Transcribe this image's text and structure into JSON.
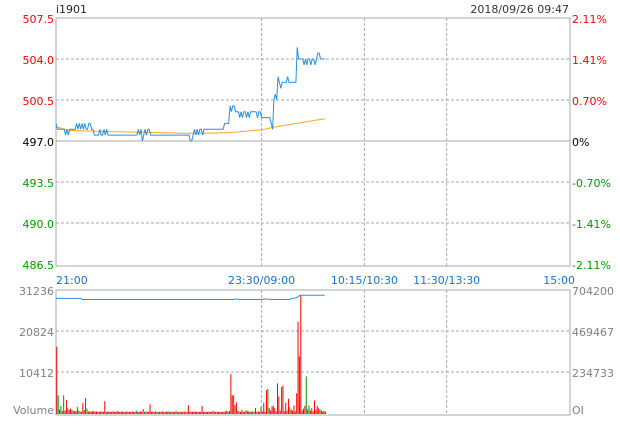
{
  "header": {
    "symbol": "i1901",
    "datetime": "2018/09/26 09:47"
  },
  "colors": {
    "up": "#ff0000",
    "down": "#009900",
    "neutral": "#000000",
    "price_line": "#2a8ee0",
    "avg_line": "#f5a623",
    "oi_line": "#2a8ee0",
    "time_labels": "#1a73c8",
    "volume_labels": "#808080",
    "grid": "#aaaaaa"
  },
  "chart_data": [
    {
      "type": "line",
      "name_panel": "price",
      "ylim": [
        486.5,
        507.5
      ],
      "prev_close": 497.0,
      "y_ticks_left": [
        "507.5",
        "504.0",
        "500.5",
        "497.0",
        "493.5",
        "490.0",
        "486.5"
      ],
      "y_ticks_right": [
        "2.11%",
        "1.41%",
        "0.70%",
        "0%",
        "-0.70%",
        "-1.41%",
        "-2.11%"
      ],
      "x_ticks": [
        "21:00",
        "23:30/09:00",
        "10:15/10:30",
        "11:30/13:30",
        "15:00"
      ],
      "session_minutes": 375,
      "grid": true,
      "price": [
        498.5,
        498.0,
        498.0,
        498.0,
        498.0,
        498.0,
        498.0,
        497.5,
        498.0,
        497.5,
        498.0,
        498.0,
        498.0,
        498.0,
        498.0,
        498.5,
        498.0,
        498.5,
        498.0,
        498.5,
        498.0,
        498.5,
        498.0,
        498.0,
        498.5,
        498.5,
        498.0,
        498.0,
        497.5,
        497.5,
        497.5,
        497.5,
        498.0,
        497.5,
        497.5,
        498.0,
        497.5,
        498.0,
        497.5,
        497.5,
        497.5,
        497.5,
        497.5,
        497.5,
        497.5,
        497.5,
        497.5,
        497.5,
        497.5,
        497.5,
        497.5,
        497.5,
        497.5,
        497.5,
        497.5,
        497.5,
        497.5,
        497.5,
        497.5,
        497.5,
        498.0,
        497.5,
        498.0,
        497.0,
        497.5,
        498.0,
        497.5,
        498.0,
        498.0,
        497.5,
        497.5,
        497.5,
        497.5,
        497.5,
        497.5,
        497.5,
        497.5,
        497.5,
        497.5,
        497.5,
        497.5,
        497.5,
        497.5,
        497.5,
        497.5,
        497.5,
        497.5,
        497.5,
        497.5,
        497.5,
        497.5,
        497.5,
        497.5,
        497.5,
        497.5,
        497.5,
        497.5,
        497.5,
        497.0,
        497.0,
        497.5,
        498.0,
        497.5,
        498.0,
        497.5,
        498.0,
        498.0,
        497.5,
        498.0,
        498.0,
        498.0,
        498.0,
        498.0,
        498.0,
        498.0,
        498.0,
        498.0,
        498.0,
        498.0,
        498.0,
        498.0,
        498.0,
        498.0,
        498.5,
        498.5,
        498.5,
        498.5,
        500.0,
        499.5,
        500.0,
        500.0,
        499.5,
        499.5,
        499.5,
        499.0,
        499.5,
        499.0,
        499.5,
        499.5,
        499.0,
        499.5,
        499.0,
        499.5,
        499.5,
        499.5,
        499.5,
        499.5,
        499.0,
        499.5,
        499.5,
        499.0,
        499.0,
        499.0,
        499.0,
        499.0,
        499.0,
        499.0,
        498.5,
        498.0,
        500.5,
        501.0,
        500.5,
        502.5,
        502.0,
        501.5,
        502.0,
        502.0,
        502.0,
        502.0,
        502.5,
        502.0,
        502.0,
        502.0,
        502.0,
        502.0,
        502.0,
        505.0,
        504.0,
        504.0,
        504.0,
        504.0,
        503.5,
        504.0,
        503.5,
        504.0,
        504.0,
        503.5,
        504.0,
        504.0,
        503.5,
        504.0,
        504.5,
        504.5,
        504.0,
        504.0,
        504.0,
        504.0
      ],
      "avg_price": [
        [
          0,
          498.2
        ],
        [
          10,
          497.9
        ],
        [
          40,
          497.8
        ],
        [
          100,
          497.65
        ],
        [
          125,
          497.7
        ],
        [
          150,
          497.95
        ],
        [
          160,
          498.2
        ],
        [
          196,
          498.9
        ]
      ]
    },
    {
      "type": "bar",
      "name_panel": "volume",
      "ylim": [
        0,
        31236
      ],
      "y_ticks_left": [
        "31236",
        "20824",
        "10412",
        "Volume"
      ],
      "y2lim": [
        0,
        704200
      ],
      "y_ticks_right": [
        "704200",
        "469467",
        "234733",
        "OI"
      ],
      "volume": [
        16800,
        4500,
        900,
        1800,
        500,
        4500,
        600,
        3300,
        1200,
        800,
        1100,
        700,
        600,
        500,
        400,
        1500,
        600,
        400,
        300,
        2500,
        700,
        3800,
        1100,
        400,
        300,
        400,
        400,
        500,
        300,
        400,
        300,
        300,
        400,
        300,
        300,
        3000,
        300,
        300,
        400,
        300,
        300,
        400,
        300,
        300,
        500,
        300,
        300,
        400,
        300,
        300,
        300,
        400,
        300,
        300,
        300,
        400,
        300,
        300,
        600,
        300,
        300,
        400,
        300,
        1000,
        300,
        400,
        300,
        300,
        2200,
        300,
        300,
        300,
        400,
        300,
        300,
        300,
        300,
        400,
        300,
        300,
        300,
        400,
        300,
        300,
        300,
        300,
        300,
        500,
        300,
        300,
        300,
        300,
        300,
        400,
        300,
        300,
        2000,
        300,
        300,
        300,
        300,
        400,
        300,
        300,
        300,
        300,
        1800,
        300,
        300,
        300,
        300,
        400,
        300,
        300,
        600,
        300,
        300,
        300,
        300,
        300,
        300,
        300,
        300,
        400,
        600,
        300,
        500,
        9900,
        4500,
        4500,
        2000,
        2700,
        600,
        400,
        300,
        800,
        300,
        300,
        700,
        500,
        400,
        300,
        300,
        400,
        300,
        1300,
        300,
        400,
        300,
        1500,
        300,
        2600,
        300,
        5800,
        6100,
        1200,
        600,
        1700,
        1800,
        1200,
        400,
        7500,
        4200,
        600,
        6600,
        6900,
        400,
        2600,
        600,
        3600,
        1500,
        800,
        600,
        1900,
        400,
        5000,
        23200,
        14400,
        29900,
        600,
        1100,
        1800,
        9300,
        900,
        1900,
        600,
        1200,
        400,
        3200,
        800,
        1800,
        1200,
        1000,
        600,
        400,
        500,
        300
      ],
      "volume_colors": "rgrgrgrrgrrrgrrrgrgrrrgrrrrrrrrrrrrrrrrrrrrrrrrrrrgrrrrrrrgrrrrrgrrrrrrrgrgrrrgrrrrgrrrgrrrrrrgrrrrrrrrrrrrrrrrrrrgrrrrrrrrrrgrrrgrrgrrrrrgrrrrrgrrrrgrrrrgrrrrrrrrrgrrrrrgrrrrrrrrrrrgrgrrrrrrrgrrrrr",
      "open_interest": [
        [
          0,
          656000
        ],
        [
          18,
          656000
        ],
        [
          19,
          650000
        ],
        [
          130,
          650000
        ],
        [
          131,
          653000
        ],
        [
          134,
          650000
        ],
        [
          150,
          650000
        ],
        [
          152,
          653000
        ],
        [
          158,
          650000
        ],
        [
          170,
          650000
        ],
        [
          176,
          662000
        ],
        [
          178,
          674000
        ],
        [
          196,
          674000
        ]
      ]
    }
  ]
}
